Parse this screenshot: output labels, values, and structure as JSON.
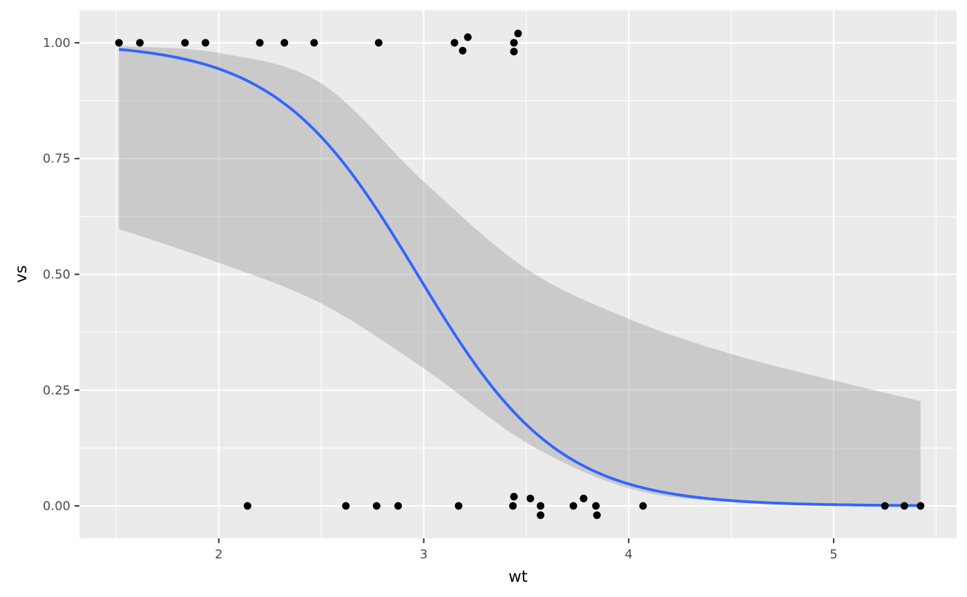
{
  "chart_data": {
    "type": "scatter",
    "title": "",
    "xlabel": "wt",
    "ylabel": "vs",
    "xlim": [
      1.32,
      5.6
    ],
    "ylim": [
      -0.07,
      1.07
    ],
    "x_ticks": [
      2,
      3,
      4,
      5
    ],
    "x_tick_labels": [
      "2",
      "3",
      "4",
      "5"
    ],
    "y_ticks": [
      0,
      0.25,
      0.5,
      0.75,
      1
    ],
    "y_tick_labels": [
      "0.00",
      "0.25",
      "0.50",
      "0.75",
      "1.00"
    ],
    "grid": true,
    "colors": {
      "panel": "#ebebeb",
      "grid": "#ffffff",
      "points": "#000000",
      "fit_line": "#3366ff",
      "ribbon": "#999999"
    },
    "points": [
      {
        "x": 1.513,
        "y": 1.0
      },
      {
        "x": 1.615,
        "y": 1.0
      },
      {
        "x": 1.835,
        "y": 1.0
      },
      {
        "x": 1.935,
        "y": 1.0
      },
      {
        "x": 2.2,
        "y": 1.0
      },
      {
        "x": 2.32,
        "y": 1.0
      },
      {
        "x": 2.465,
        "y": 1.0
      },
      {
        "x": 2.78,
        "y": 1.0
      },
      {
        "x": 3.15,
        "y": 1.0
      },
      {
        "x": 3.19,
        "y": 0.983
      },
      {
        "x": 3.215,
        "y": 1.012
      },
      {
        "x": 3.44,
        "y": 1.0
      },
      {
        "x": 3.44,
        "y": 0.981
      },
      {
        "x": 3.46,
        "y": 1.02
      },
      {
        "x": 2.14,
        "y": 0.0
      },
      {
        "x": 2.62,
        "y": 0.0
      },
      {
        "x": 2.77,
        "y": 0.0
      },
      {
        "x": 2.875,
        "y": 0.0
      },
      {
        "x": 3.17,
        "y": 0.0
      },
      {
        "x": 3.435,
        "y": 0.0
      },
      {
        "x": 3.44,
        "y": 0.02
      },
      {
        "x": 3.52,
        "y": 0.016
      },
      {
        "x": 3.57,
        "y": 0.0
      },
      {
        "x": 3.57,
        "y": -0.02
      },
      {
        "x": 3.73,
        "y": 0.0
      },
      {
        "x": 3.78,
        "y": 0.016
      },
      {
        "x": 3.84,
        "y": 0.0
      },
      {
        "x": 3.845,
        "y": -0.02
      },
      {
        "x": 4.07,
        "y": 0.0
      },
      {
        "x": 5.25,
        "y": 0.0
      },
      {
        "x": 5.345,
        "y": 0.0
      },
      {
        "x": 5.424,
        "y": 0.0
      }
    ],
    "fit": {
      "model": "logistic",
      "intercept": 8.64,
      "slope": -2.91,
      "x_range": [
        1.513,
        5.424
      ]
    },
    "confidence_band": {
      "x": [
        1.513,
        2.0,
        2.5,
        3.0,
        3.5,
        4.0,
        4.5,
        5.0,
        5.424
      ],
      "lower": [
        0.598,
        0.525,
        0.437,
        0.297,
        0.137,
        0.038,
        0.008,
        0.002,
        0.001
      ],
      "upper": [
        0.993,
        0.978,
        0.912,
        0.7,
        0.512,
        0.404,
        0.328,
        0.271,
        0.226
      ]
    }
  }
}
